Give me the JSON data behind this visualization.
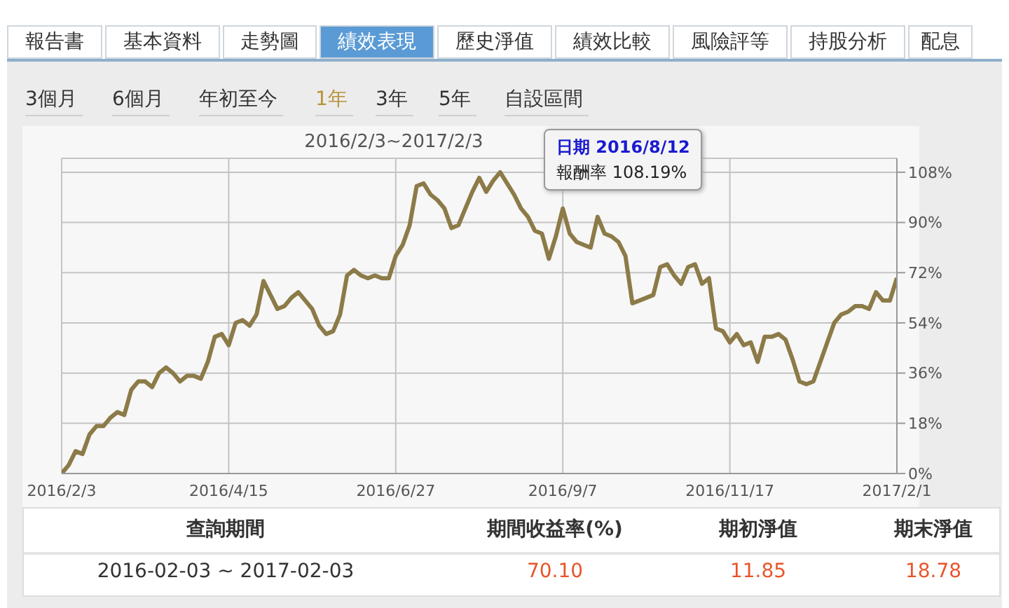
{
  "chart_data": [
    {
      "type": "other",
      "categories": [
        "報告書",
        "基本資料",
        "走勢圖",
        "績效表現",
        "歷史淨值",
        "績效比較",
        "風險評等",
        "持股分析",
        "配息"
      ],
      "colors": [
        "#ffffff",
        "#ffffff",
        "#ffffff",
        "#5b9bd5",
        "#ffffff",
        "#ffffff",
        "#ffffff",
        "#ffffff",
        "#ffffff"
      ]
    },
    {
      "type": "other",
      "categories": [
        "3個月",
        "6個月",
        "年初至今",
        "1年",
        "3年",
        "5年",
        "自設區間"
      ],
      "colors": [
        "#333333",
        "#333333",
        "#333333",
        "#b8923a",
        "#333333",
        "#333333",
        "#333333"
      ]
    },
    {
      "type": "line",
      "title": "2016/2/3~2017/2/3",
      "categories": [
        "2016/2/3",
        null,
        null,
        null,
        null,
        null,
        null,
        null,
        null,
        null,
        null,
        null,
        null,
        null,
        null,
        null,
        null,
        null,
        null,
        null,
        null,
        null,
        null,
        null,
        "2016/4/15",
        null,
        null,
        null,
        null,
        null,
        null,
        null,
        null,
        null,
        null,
        null,
        null,
        null,
        null,
        null,
        null,
        null,
        null,
        null,
        null,
        null,
        null,
        null,
        "2016/6/27",
        null,
        null,
        null,
        null,
        null,
        null,
        null,
        null,
        null,
        null,
        null,
        null,
        null,
        null,
        null,
        null,
        null,
        null,
        null,
        null,
        null,
        null,
        null,
        "2016/9/7",
        null,
        null,
        null,
        null,
        null,
        null,
        null,
        null,
        null,
        null,
        null,
        null,
        null,
        null,
        null,
        null,
        null,
        null,
        null,
        null,
        null,
        null,
        null,
        "2016/11/17",
        null,
        null,
        null,
        null,
        null,
        null,
        null,
        null,
        null,
        null,
        null,
        null,
        null,
        null,
        null,
        null,
        null,
        null,
        null,
        null,
        null,
        null,
        null,
        "2017/2/1"
      ],
      "series": [
        {
          "color": "#8c7b48",
          "values": [
            0,
            3,
            8,
            7,
            14,
            17,
            17,
            20,
            22,
            21,
            30,
            33,
            33,
            31,
            36,
            38,
            36,
            33,
            35,
            35,
            34,
            40,
            49,
            50,
            46,
            54,
            55,
            53,
            57,
            69,
            64,
            59,
            60,
            63,
            65,
            62,
            59,
            53,
            50,
            51,
            57,
            71,
            73,
            71,
            70,
            71,
            70,
            70,
            78,
            82,
            89,
            103,
            104,
            100,
            98,
            95,
            88,
            89,
            95,
            101,
            106,
            101,
            105,
            108,
            104,
            100,
            95,
            92,
            87,
            86,
            77,
            85,
            95,
            86,
            83,
            82,
            81,
            92,
            86,
            85,
            83,
            78,
            61,
            62,
            63,
            64,
            74,
            75,
            71,
            68,
            74,
            75,
            68,
            70,
            52,
            51,
            47,
            50,
            46,
            47,
            40,
            49,
            49,
            50,
            48,
            41,
            33,
            32,
            33,
            40,
            47,
            54,
            57,
            58,
            60,
            60,
            59,
            65,
            62,
            62,
            70.1
          ]
        }
      ],
      "ylim": [
        0,
        113
      ],
      "yticks": [
        {
          "value": 0,
          "label": "0%"
        },
        {
          "value": 18,
          "label": "18%"
        },
        {
          "value": 36,
          "label": "36%"
        },
        {
          "value": 54,
          "label": "54%"
        },
        {
          "value": 72,
          "label": "72%"
        },
        {
          "value": 90,
          "label": "90%"
        },
        {
          "value": 108,
          "label": "108%"
        }
      ],
      "grid": true,
      "marker": "none",
      "line_style": "solid",
      "annotations": [
        "日期 2016/8/12",
        "報酬率 108.19%"
      ]
    },
    {
      "type": "other",
      "categories": [
        "查詢期間",
        "期間收益率(%)",
        "期初淨值",
        "期末淨值"
      ],
      "value_labels": [
        "2016-02-03 ~ 2017-02-03",
        "70.10",
        "11.85",
        "18.78"
      ]
    }
  ]
}
